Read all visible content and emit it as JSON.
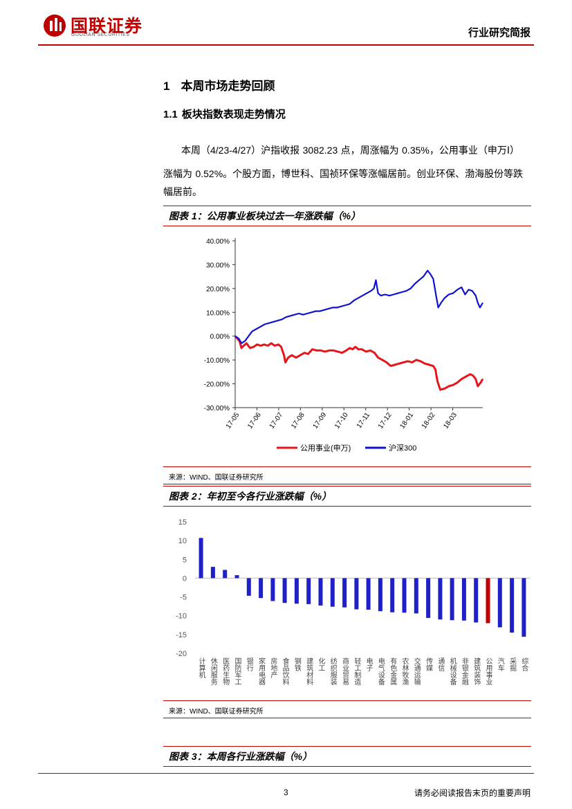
{
  "header": {
    "logo_cn": "国联证券",
    "logo_en": "GUOLIAN SECURITIES",
    "report_type": "行业研究简报"
  },
  "section": {
    "num": "1",
    "title": "本周市场走势回顾"
  },
  "subsection": {
    "num": "1.1",
    "title": "板块指数表现走势情况"
  },
  "paragraph": {
    "line1_a": "本周（",
    "line1_b": "4/23-4/27",
    "line1_c": "）沪指收报 ",
    "line1_d": "3082.23",
    "line1_e": " 点，周涨幅为 ",
    "line1_f": "0.35%",
    "line1_g": "，公用事业（申万Ⅰ）",
    "line2_a": "涨幅为 ",
    "line2_b": "0.52%",
    "line2_c": "。个股方面，博世科、国祯环保等涨幅居前。创业环保、渤海股份等跌",
    "line3": "幅居前。"
  },
  "figure1": {
    "caption_a": "图表 ",
    "caption_b": "1",
    "caption_c": "：公用事业板块过去一年涨跌幅（",
    "caption_d": "%",
    "caption_e": "）",
    "source_a": "来源：",
    "source_b": "WIND",
    "source_c": "、国联证券研究所"
  },
  "figure2": {
    "caption_a": "图表 ",
    "caption_b": "2",
    "caption_c": "：年初至今各行业涨跌幅（",
    "caption_d": "%",
    "caption_e": "）",
    "source_a": "来源：",
    "source_b": "WIND",
    "source_c": "、国联证券研究所"
  },
  "figure3": {
    "caption_a": "图表 ",
    "caption_b": "3",
    "caption_c": "：本周各行业涨跌幅（",
    "caption_d": "%",
    "caption_e": "）"
  },
  "footer": {
    "page": "3",
    "note": "请务必阅读报告末页的重要声明"
  },
  "chart_data": [
    {
      "type": "line",
      "y_ticks": [
        "40.00%",
        "30.00%",
        "20.00%",
        "10.00%",
        "0.00%",
        "-10.00%",
        "-20.00%",
        "-30.00%"
      ],
      "ylim": [
        -30,
        40
      ],
      "x_ticks": [
        "17-05",
        "17-06",
        "17-07",
        "17-08",
        "17-09",
        "17-10",
        "17-11",
        "17-12",
        "18-01",
        "18-02",
        "18-03"
      ],
      "series": [
        {
          "name": "公用事业(申万)",
          "color": "#e8141b",
          "points": [
            [
              0,
              0
            ],
            [
              0.6,
              -2
            ],
            [
              0.9,
              -5
            ],
            [
              1.2,
              -4
            ],
            [
              1.6,
              -3
            ],
            [
              2.1,
              -5
            ],
            [
              2.6,
              -4.5
            ],
            [
              3.1,
              -3.5
            ],
            [
              3.6,
              -4
            ],
            [
              4.1,
              -3.5
            ],
            [
              4.6,
              -4
            ],
            [
              5.1,
              -3
            ],
            [
              5.6,
              -4
            ],
            [
              6.1,
              -3.5
            ],
            [
              6.5,
              -4.5
            ],
            [
              6.9,
              -8
            ],
            [
              7.1,
              -11
            ],
            [
              7.5,
              -9
            ],
            [
              8.0,
              -8
            ],
            [
              8.6,
              -9
            ],
            [
              9.2,
              -8
            ],
            [
              9.8,
              -7
            ],
            [
              10.3,
              -7.5
            ],
            [
              10.9,
              -5.5
            ],
            [
              11.5,
              -6
            ],
            [
              12.1,
              -6
            ],
            [
              12.7,
              -6.5
            ],
            [
              13.3,
              -6
            ],
            [
              13.9,
              -6
            ],
            [
              14.5,
              -6.5
            ],
            [
              15.1,
              -7
            ],
            [
              15.7,
              -6
            ],
            [
              16.2,
              -5
            ],
            [
              16.6,
              -5.5
            ],
            [
              17.0,
              -4.5
            ],
            [
              17.4,
              -5.5
            ],
            [
              17.9,
              -5.5
            ],
            [
              18.5,
              -6.5
            ],
            [
              19.1,
              -6
            ],
            [
              19.7,
              -7
            ],
            [
              20.2,
              -9
            ],
            [
              20.8,
              -10
            ],
            [
              21.4,
              -11
            ],
            [
              22.0,
              -12.5
            ],
            [
              22.6,
              -12
            ],
            [
              23.2,
              -11.5
            ],
            [
              23.8,
              -11
            ],
            [
              24.4,
              -10.5
            ],
            [
              25.0,
              -11
            ],
            [
              25.6,
              -10
            ],
            [
              26.2,
              -10.5
            ],
            [
              26.8,
              -11.5
            ],
            [
              27.4,
              -12
            ],
            [
              28.0,
              -12.5
            ],
            [
              28.3,
              -14
            ],
            [
              28.6,
              -19
            ],
            [
              29.0,
              -22.5
            ],
            [
              29.6,
              -22
            ],
            [
              30.2,
              -21
            ],
            [
              30.8,
              -20.5
            ],
            [
              31.4,
              -19.5
            ],
            [
              32.0,
              -18
            ],
            [
              32.6,
              -17
            ],
            [
              33.2,
              -16
            ],
            [
              33.6,
              -16.5
            ],
            [
              34.0,
              -18
            ],
            [
              34.3,
              -21
            ],
            [
              34.7,
              -19.5
            ],
            [
              35.0,
              -18
            ]
          ]
        },
        {
          "name": "沪深300",
          "color": "#1010d0",
          "points": [
            [
              0,
              0
            ],
            [
              0.5,
              -1
            ],
            [
              0.9,
              -3
            ],
            [
              1.4,
              -2
            ],
            [
              1.9,
              0
            ],
            [
              2.4,
              2
            ],
            [
              3.0,
              3
            ],
            [
              3.6,
              4
            ],
            [
              4.2,
              5
            ],
            [
              4.8,
              5.5
            ],
            [
              5.4,
              6
            ],
            [
              6.0,
              6.5
            ],
            [
              6.6,
              7
            ],
            [
              7.2,
              8
            ],
            [
              7.8,
              8.5
            ],
            [
              8.4,
              9
            ],
            [
              9.0,
              9.5
            ],
            [
              9.6,
              9
            ],
            [
              10.2,
              9.5
            ],
            [
              10.8,
              10
            ],
            [
              11.4,
              10.5
            ],
            [
              12.0,
              10.5
            ],
            [
              12.6,
              11
            ],
            [
              13.2,
              11.5
            ],
            [
              13.8,
              12
            ],
            [
              14.4,
              12
            ],
            [
              15.0,
              12.5
            ],
            [
              15.6,
              13
            ],
            [
              16.2,
              13.5
            ],
            [
              16.8,
              15
            ],
            [
              17.4,
              16
            ],
            [
              18.0,
              17
            ],
            [
              18.6,
              18
            ],
            [
              19.2,
              19
            ],
            [
              19.6,
              20
            ],
            [
              19.9,
              23.5
            ],
            [
              20.2,
              18
            ],
            [
              20.6,
              17
            ],
            [
              21.2,
              17.5
            ],
            [
              21.8,
              17
            ],
            [
              22.4,
              17.5
            ],
            [
              23.0,
              18
            ],
            [
              23.6,
              18.5
            ],
            [
              24.2,
              19
            ],
            [
              24.8,
              20
            ],
            [
              25.4,
              22
            ],
            [
              26.0,
              23.5
            ],
            [
              26.6,
              25
            ],
            [
              27.2,
              27.5
            ],
            [
              27.6,
              26
            ],
            [
              28.0,
              24
            ],
            [
              28.4,
              17
            ],
            [
              28.7,
              12
            ],
            [
              29.1,
              14
            ],
            [
              29.6,
              16
            ],
            [
              30.2,
              17.5
            ],
            [
              30.8,
              18
            ],
            [
              31.4,
              19.5
            ],
            [
              32.0,
              20.5
            ],
            [
              32.5,
              17.5
            ],
            [
              33.0,
              19.5
            ],
            [
              33.5,
              19
            ],
            [
              34.0,
              17
            ],
            [
              34.3,
              14
            ],
            [
              34.6,
              12
            ],
            [
              35.0,
              14
            ]
          ]
        }
      ]
    },
    {
      "type": "bar",
      "y_ticks": [
        "15",
        "10",
        "5",
        "0",
        "-5",
        "-10",
        "-15",
        "-20"
      ],
      "ylim": [
        -20,
        15
      ],
      "categories": [
        "计算机",
        "休闲服务",
        "医药生物",
        "国防军工",
        "银行",
        "家用电器",
        "房地产",
        "食品饮料",
        "钢铁",
        "建筑材料",
        "化工",
        "纺织服装",
        "商业贸易",
        "轻工制造",
        "电子",
        "电气设备",
        "有色金属",
        "农林牧渔",
        "交通运输",
        "传媒",
        "通信",
        "机械设备",
        "非银金融",
        "建筑装饰",
        "公用事业",
        "汽车",
        "采掘",
        "综合"
      ],
      "values": [
        10.7,
        3.0,
        2.2,
        0.8,
        -4.7,
        -5.3,
        -6.1,
        -6.6,
        -6.8,
        -6.9,
        -7.3,
        -7.6,
        -7.8,
        -8.3,
        -8.4,
        -8.8,
        -9.1,
        -9.2,
        -9.4,
        -10.6,
        -11.0,
        -11.2,
        -11.3,
        -11.8,
        -12.0,
        -13.1,
        -14.5,
        -15.6
      ],
      "highlight": "公用事业",
      "bar_color": "#2020c8",
      "highlight_color": "#c00000"
    }
  ]
}
